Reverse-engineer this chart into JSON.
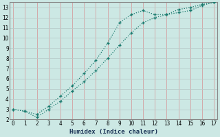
{
  "xlabel": "Humidex (Indice chaleur)",
  "background_color": "#cce8e4",
  "grid_color_v": "#d4a0a0",
  "grid_color_h": "#b8ccca",
  "line_color": "#1a7a6e",
  "x_line1": [
    0,
    1,
    2,
    3,
    4,
    5,
    6,
    7,
    8,
    9,
    10,
    11,
    12,
    13,
    14,
    15,
    16,
    17
  ],
  "y_line1": [
    3.0,
    2.8,
    2.5,
    3.3,
    4.3,
    5.3,
    6.5,
    7.8,
    9.5,
    11.5,
    12.3,
    12.7,
    12.3,
    12.3,
    12.5,
    12.7,
    13.2,
    13.5
  ],
  "x_line2": [
    0,
    1,
    2,
    3,
    4,
    5,
    6,
    7,
    8,
    9,
    10,
    11,
    12,
    13,
    14,
    15,
    16,
    17
  ],
  "y_line2": [
    3.0,
    2.8,
    2.2,
    3.0,
    3.8,
    4.8,
    5.7,
    6.8,
    8.0,
    9.3,
    10.5,
    11.5,
    12.0,
    12.3,
    12.8,
    13.0,
    13.3,
    13.5
  ],
  "xlim": [
    -0.3,
    17.3
  ],
  "ylim": [
    2,
    13.5
  ],
  "xticks": [
    0,
    1,
    2,
    3,
    4,
    5,
    6,
    7,
    8,
    9,
    10,
    11,
    12,
    13,
    14,
    15,
    16,
    17
  ],
  "yticks": [
    2,
    3,
    4,
    5,
    6,
    7,
    8,
    9,
    10,
    11,
    12,
    13
  ],
  "tick_fontsize": 5.5,
  "xlabel_fontsize": 6.5
}
